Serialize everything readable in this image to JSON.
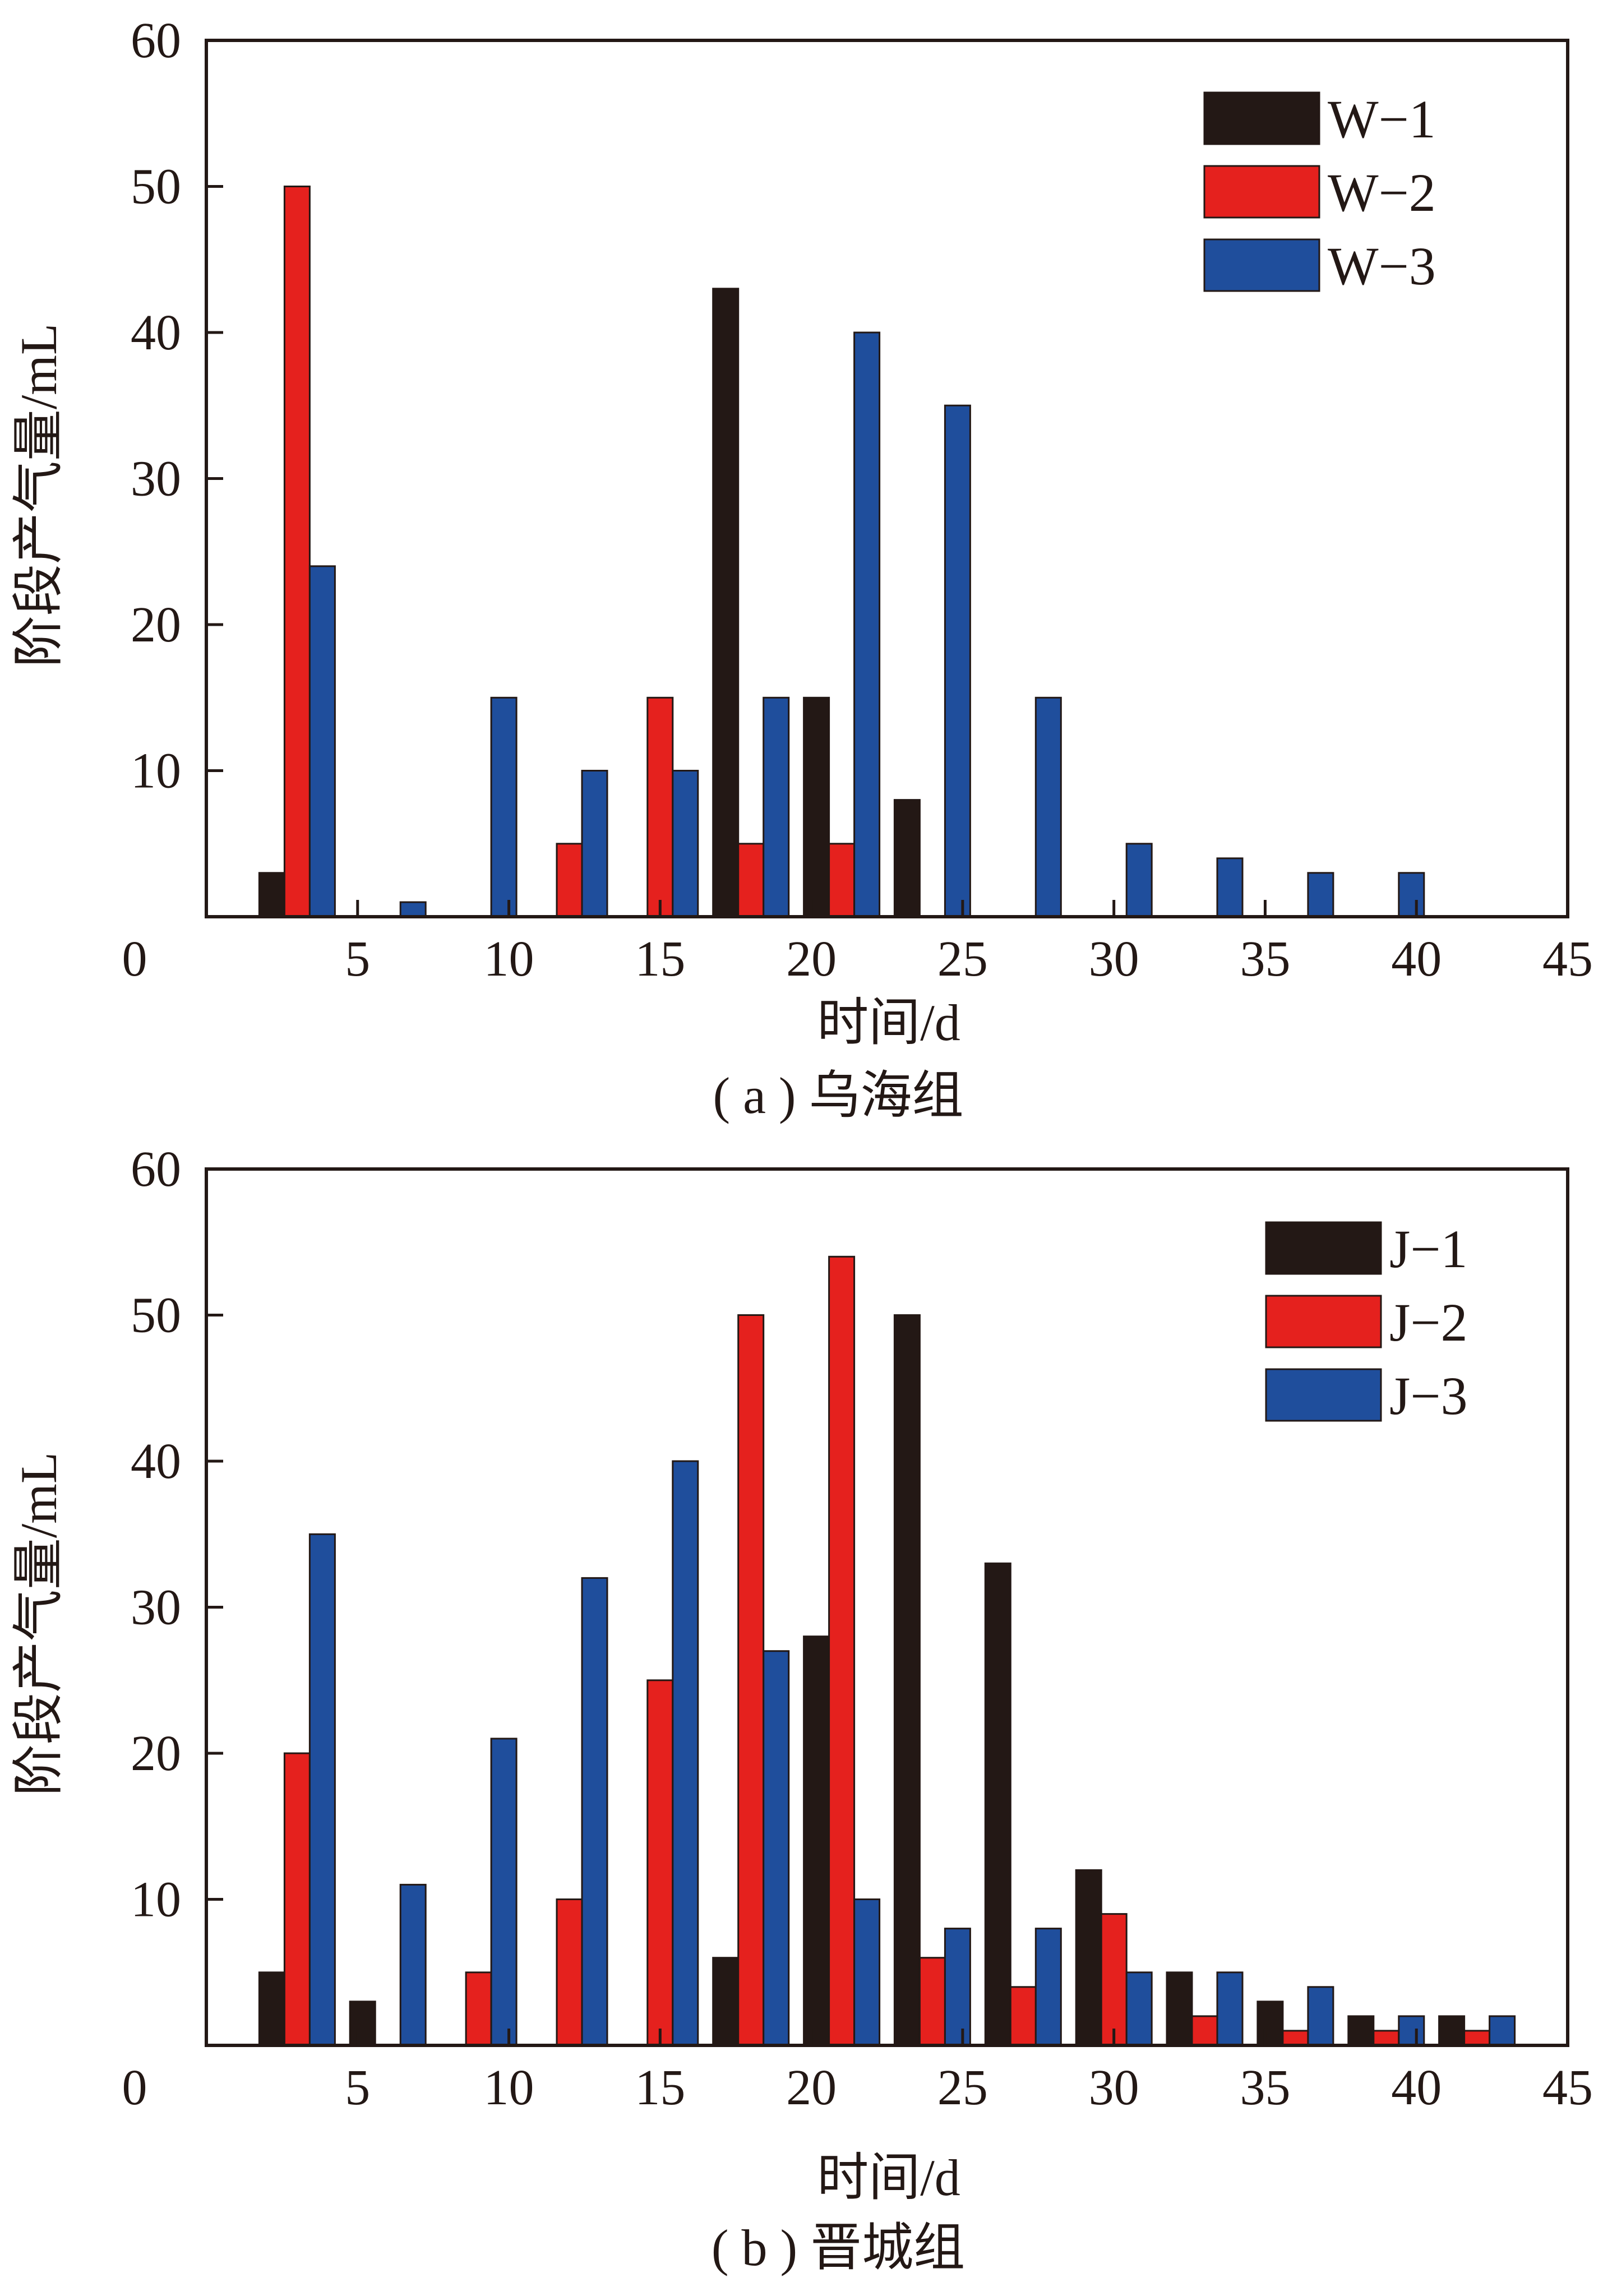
{
  "colors": {
    "black": "#231815",
    "red": "#e5211e",
    "blue": "#1f4e9c",
    "axis": "#231815"
  },
  "chart_data": [
    {
      "type": "bar",
      "caption": "( a ) 乌海组",
      "xlabel": "时间/d",
      "ylabel": "阶段产气量/mL",
      "xlim": [
        0,
        45
      ],
      "ylim": [
        0,
        60
      ],
      "x_ticks": [
        "5",
        "10",
        "15",
        "20",
        "25",
        "30",
        "35",
        "40",
        "45"
      ],
      "y_ticks": [
        "0",
        "10",
        "20",
        "30",
        "40",
        "50",
        "60"
      ],
      "legend_position": "top-right",
      "categories": [
        3,
        6,
        9,
        12,
        15,
        18,
        21,
        24,
        27,
        30,
        33,
        36,
        39
      ],
      "series": [
        {
          "name": "W−1",
          "color": "#231815",
          "values": [
            3,
            0,
            0,
            0,
            0,
            43,
            15,
            8,
            0,
            0,
            0,
            0,
            0
          ]
        },
        {
          "name": "W−2",
          "color": "#e5211e",
          "values": [
            50,
            0,
            0,
            5,
            15,
            5,
            5,
            0,
            0,
            0,
            0,
            0,
            0
          ]
        },
        {
          "name": "W−3",
          "color": "#1f4e9c",
          "values": [
            24,
            1,
            15,
            10,
            10,
            15,
            40,
            35,
            15,
            5,
            4,
            3,
            3
          ]
        }
      ]
    },
    {
      "type": "bar",
      "caption": "( b ) 晋城组",
      "xlabel": "时间/d",
      "ylabel": "阶段产气量/mL",
      "xlim": [
        0,
        45
      ],
      "ylim": [
        0,
        60
      ],
      "x_ticks": [
        "5",
        "10",
        "15",
        "20",
        "25",
        "30",
        "35",
        "40",
        "45"
      ],
      "y_ticks": [
        "0",
        "10",
        "20",
        "30",
        "40",
        "50",
        "60"
      ],
      "legend_position": "top-right",
      "categories": [
        3,
        6,
        9,
        12,
        15,
        18,
        21,
        24,
        27,
        30,
        33,
        36,
        39,
        42
      ],
      "series": [
        {
          "name": "J−1",
          "color": "#231815",
          "values": [
            5,
            3,
            0,
            0,
            0,
            6,
            28,
            50,
            33,
            12,
            5,
            3,
            2,
            2
          ]
        },
        {
          "name": "J−2",
          "color": "#e5211e",
          "values": [
            20,
            0,
            5,
            10,
            25,
            50,
            54,
            6,
            4,
            9,
            2,
            1,
            1,
            1
          ]
        },
        {
          "name": "J−3",
          "color": "#1f4e9c",
          "values": [
            35,
            11,
            21,
            32,
            40,
            27,
            10,
            8,
            8,
            5,
            5,
            4,
            2,
            2
          ]
        }
      ]
    }
  ]
}
